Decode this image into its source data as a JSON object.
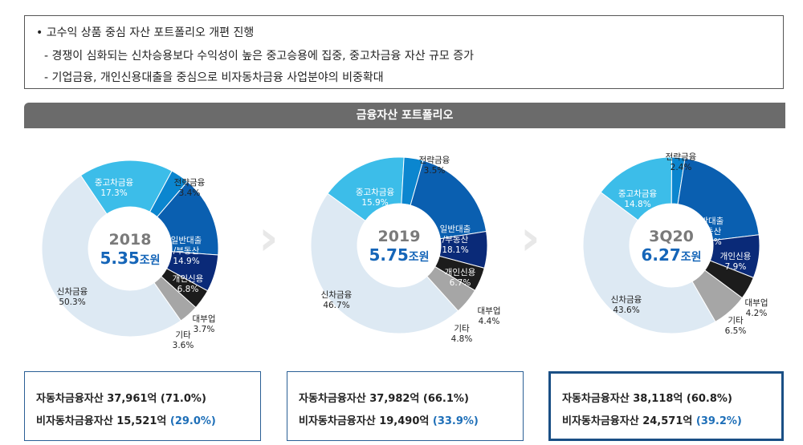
{
  "bullets": {
    "main": "•   고수익 상품 중심 자산 포트폴리오 개편 진행",
    "sub1": "- 경쟁이 심화되는 신차승용보다 수익성이 높은 중고승용에 집중, 중고차금융 자산 규모 증가",
    "sub2": "- 기업금융, 개인신용대출을 중심으로 비자동차금융 사업분야의 비중확대"
  },
  "header": "금융자산 포트폴리오",
  "colors": {
    "신차금융": "#dde9f3",
    "중고차금융": "#3cbde9",
    "전략금융": "#0b86cf",
    "일반대출/부동산": "#0a5fb0",
    "개인신용": "#0a2a78",
    "대부업": "#1c1c1c",
    "기타": "#a6a6a6"
  },
  "chart_data": [
    {
      "type": "donut",
      "center_year": "2018",
      "center_amount": "5.35",
      "center_unit": "조원",
      "categories": [
        "중고차금융",
        "전략금융",
        "일반대출/부동산",
        "개인신용",
        "대부업",
        "기타",
        "신차금융"
      ],
      "labels": [
        "중고차금융",
        "전략금융",
        "일반대출\n/부동산",
        "개인신용",
        "대부업",
        "기타",
        "신차금융"
      ],
      "values": [
        17.3,
        3.4,
        14.9,
        6.8,
        3.7,
        3.6,
        50.3
      ],
      "value_labels": [
        "17.3%",
        "3.4%",
        "14.9%",
        "6.8%",
        "3.7%",
        "3.6%",
        "50.3%"
      ]
    },
    {
      "type": "donut",
      "center_year": "2019",
      "center_amount": "5.75",
      "center_unit": "조원",
      "categories": [
        "중고차금융",
        "전략금융",
        "일반대출/부동산",
        "개인신용",
        "대부업",
        "기타",
        "신차금융"
      ],
      "labels": [
        "중고차금융",
        "전략금융",
        "일반대출\n/부동산",
        "개인신용",
        "대부업",
        "기타",
        "신차금융"
      ],
      "values": [
        15.9,
        3.5,
        18.1,
        6.7,
        4.4,
        4.8,
        46.7
      ],
      "value_labels": [
        "15.9%",
        "3.5%",
        "18.1%",
        "6.7%",
        "4.4%",
        "4.8%",
        "46.7%"
      ]
    },
    {
      "type": "donut",
      "center_year": "3Q20",
      "center_amount": "6.27",
      "center_unit": "조원",
      "categories": [
        "중고차금융",
        "전략금융",
        "일반대출/부동산",
        "개인신용",
        "대부업",
        "기타",
        "신차금융"
      ],
      "labels": [
        "중고차금융",
        "전략금융",
        "일반대출\n/부동산",
        "개인신용",
        "대부업",
        "기타",
        "신차금융"
      ],
      "values": [
        14.8,
        2.4,
        20.6,
        7.9,
        4.2,
        6.5,
        43.6
      ],
      "value_labels": [
        "14.8%",
        "2.4%",
        "20.6%",
        "7.9%",
        "4.2%",
        "6.5%",
        "43.6%"
      ]
    }
  ],
  "summary": [
    {
      "auto": "자동차금융자산  37,961억  (71.0%)",
      "nonauto": "비자동차금융자산  15,521억",
      "nonauto_pct": "(29.0%)"
    },
    {
      "auto": "자동차금융자산  37,982억  (66.1%)",
      "nonauto": "비자동차금융자산  19,490억",
      "nonauto_pct": "(33.9%)"
    },
    {
      "auto": "자동차금융자산  38,118억  (60.8%)",
      "nonauto": "비자동차금융자산  24,571억",
      "nonauto_pct": "(39.2%)"
    }
  ]
}
